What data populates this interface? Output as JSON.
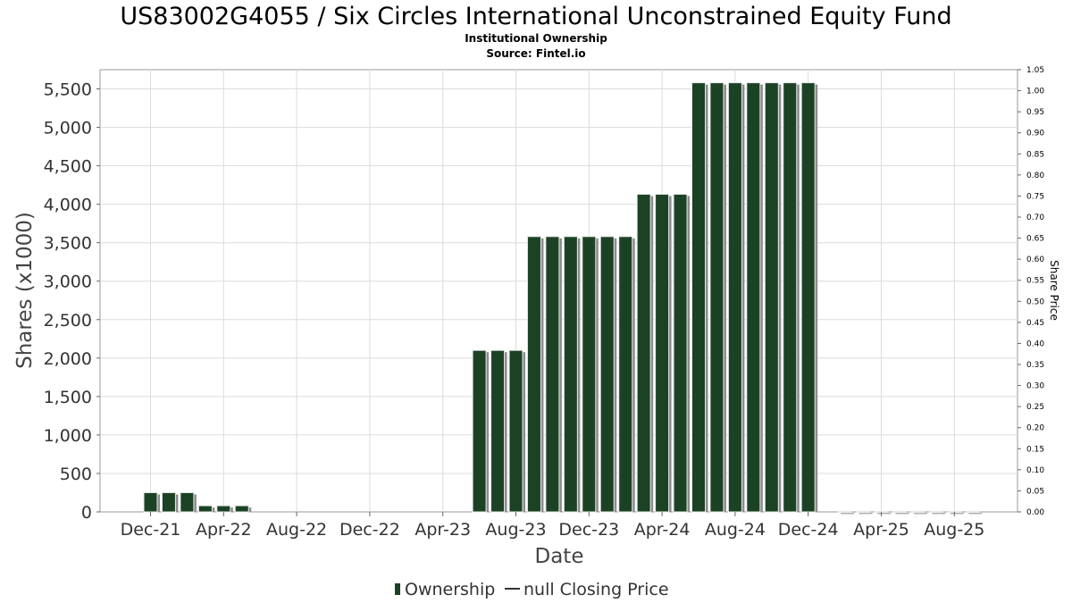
{
  "chart_data": {
    "type": "bar",
    "title": "US83002G4055 / Six Circles International Unconstrained Equity Fund",
    "subtitle": "Institutional Ownership",
    "source": "Source: Fintel.io",
    "xlabel": "Date",
    "ylabel": "Shares (x1000)",
    "y2label": "Share Price",
    "ylim": [
      0,
      5750
    ],
    "y2lim": [
      0,
      1.05
    ],
    "yticks": [
      "0",
      "500",
      "1,000",
      "1,500",
      "2,000",
      "2,500",
      "3,000",
      "3,500",
      "4,000",
      "4,500",
      "5,000",
      "5,500"
    ],
    "y2ticks": [
      "0.00",
      "0.05",
      "0.10",
      "0.15",
      "0.20",
      "0.25",
      "0.30",
      "0.35",
      "0.40",
      "0.45",
      "0.50",
      "0.55",
      "0.60",
      "0.65",
      "0.70",
      "0.75",
      "0.80",
      "0.85",
      "0.90",
      "0.95",
      "1.00",
      "1.05"
    ],
    "xticks": [
      "Dec-21",
      "Apr-22",
      "Aug-22",
      "Dec-22",
      "Apr-23",
      "Aug-23",
      "Dec-23",
      "Apr-24",
      "Aug-24",
      "Dec-24",
      "Apr-25",
      "Aug-25"
    ],
    "grid": true,
    "legend_position": "bottom",
    "series": [
      {
        "name": "Ownership",
        "color": "#1c4226",
        "values": [
          250,
          250,
          250,
          80,
          80,
          80,
          0,
          0,
          0,
          0,
          0,
          0,
          0,
          0,
          0,
          0,
          0,
          0,
          2100,
          2100,
          2100,
          3580,
          3580,
          3580,
          3580,
          3580,
          3580,
          4130,
          4130,
          4130,
          5580,
          5580,
          5580,
          5580,
          5580,
          5580,
          5580,
          0,
          8,
          8,
          8,
          8,
          8,
          8,
          8,
          8
        ]
      },
      {
        "name": "null Closing Price",
        "color": "#333333",
        "values": []
      }
    ]
  }
}
